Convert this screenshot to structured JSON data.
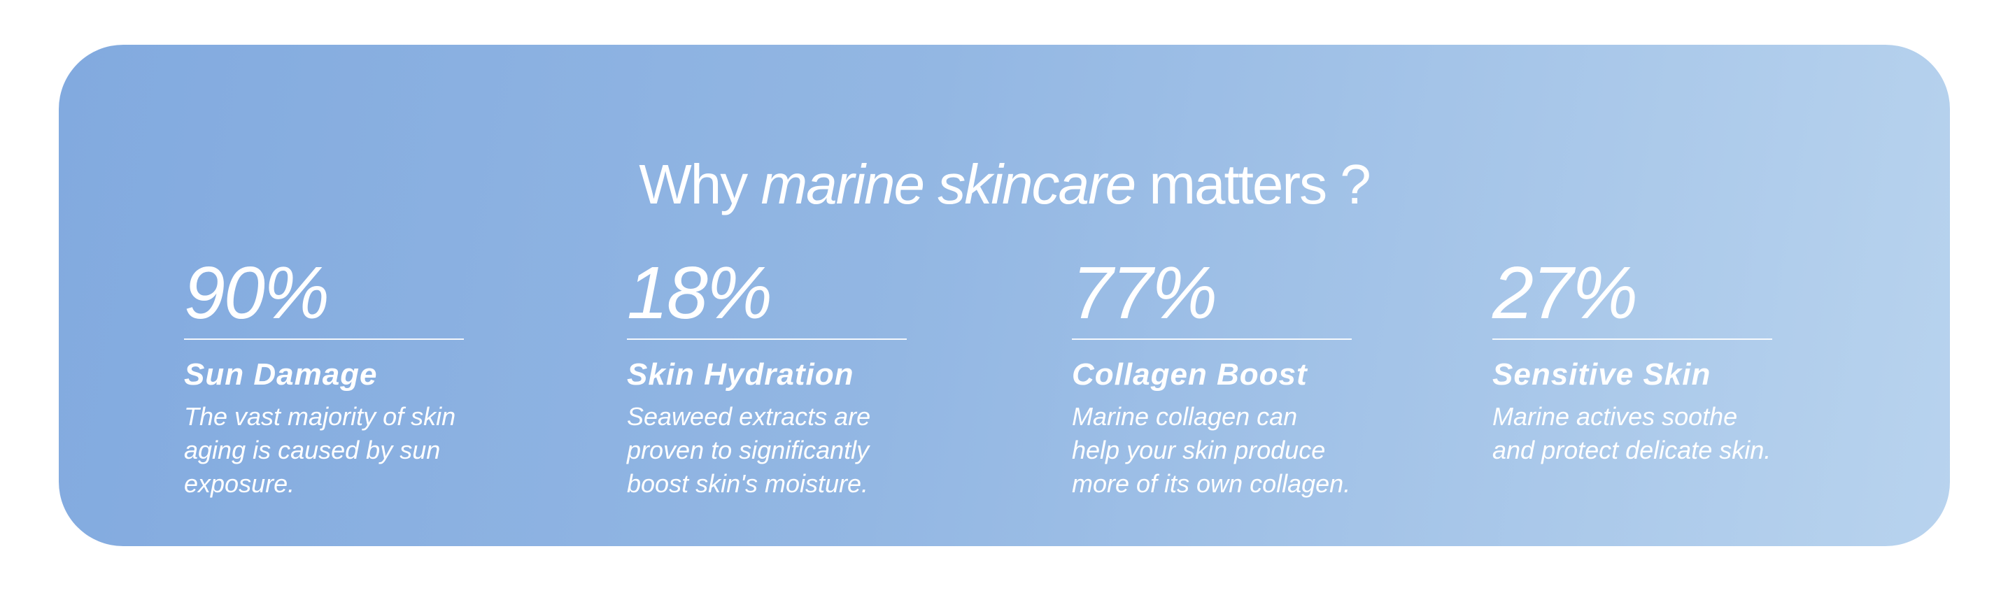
{
  "title": {
    "before": "Why",
    "emphasis": "marine skincare",
    "after": "matters ?"
  },
  "stats": [
    {
      "figure": "90%",
      "heading": "Sun Damage",
      "body": [
        "The vast majority of skin",
        "aging is caused by sun",
        "exposure."
      ]
    },
    {
      "figure": "18%",
      "heading": "Skin Hydration",
      "body": [
        "Seaweed extracts are",
        "proven to significantly",
        "boost skin's moisture."
      ]
    },
    {
      "figure": "77%",
      "heading": "Collagen Boost",
      "body": [
        "Marine collagen can",
        "help your skin produce",
        "more of its own collagen."
      ]
    },
    {
      "figure": "27%",
      "heading": "Sensitive Skin",
      "body": [
        "Marine actives soothe",
        "and protect delicate skin."
      ]
    }
  ]
}
